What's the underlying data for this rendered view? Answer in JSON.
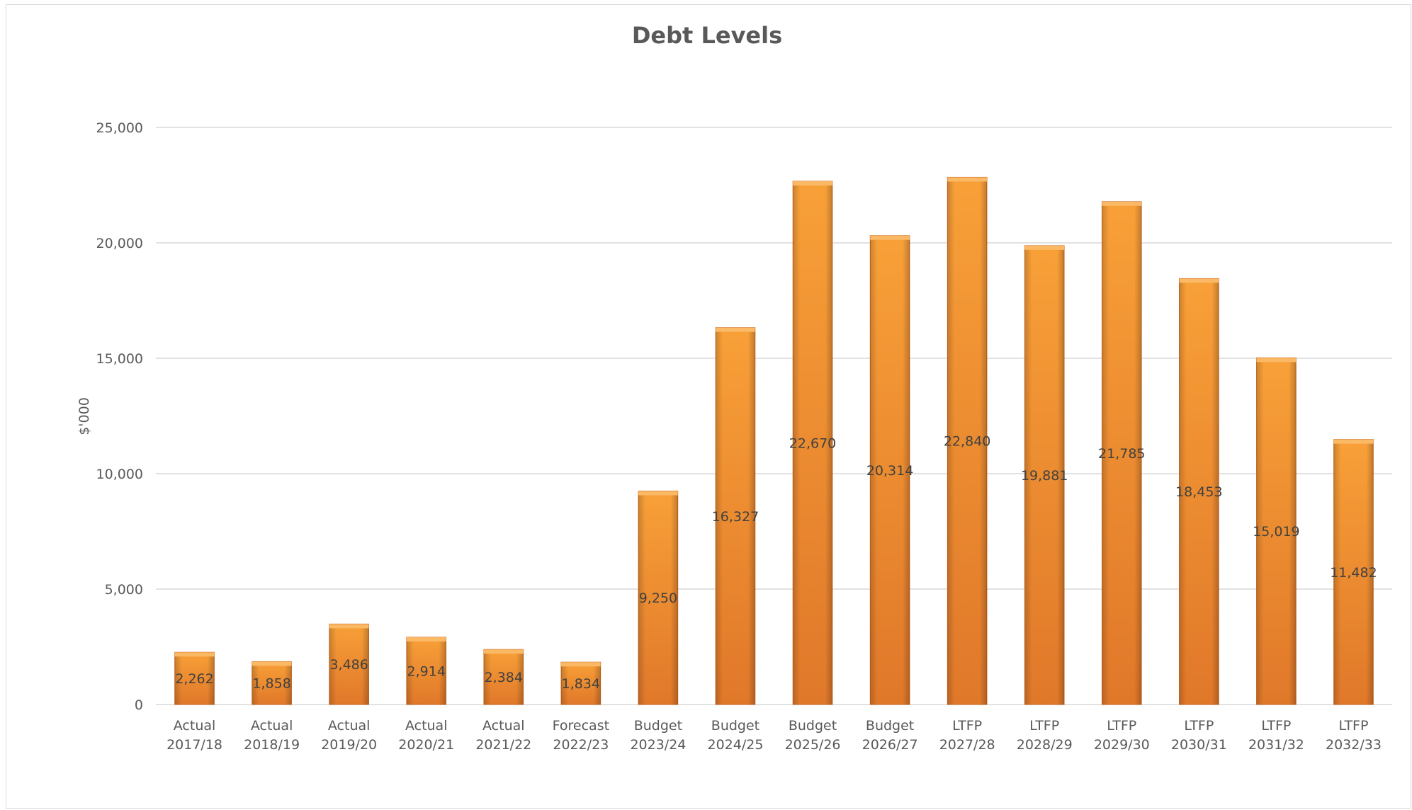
{
  "chart_data": {
    "type": "bar",
    "title": "Debt Levels",
    "xlabel": "",
    "ylabel": "$'000",
    "ylim": [
      0,
      25000
    ],
    "yticks": [
      "0",
      "5,000",
      "10,000",
      "15,000",
      "20,000",
      "25,000"
    ],
    "categories": [
      [
        "Actual",
        "2017/18"
      ],
      [
        "Actual",
        "2018/19"
      ],
      [
        "Actual",
        "2019/20"
      ],
      [
        "Actual",
        "2020/21"
      ],
      [
        "Actual",
        "2021/22"
      ],
      [
        "Forecast",
        "2022/23"
      ],
      [
        "Budget",
        "2023/24"
      ],
      [
        "Budget",
        "2024/25"
      ],
      [
        "Budget",
        "2025/26"
      ],
      [
        "Budget",
        "2026/27"
      ],
      [
        "LTFP",
        "2027/28"
      ],
      [
        "LTFP",
        "2028/29"
      ],
      [
        "LTFP",
        "2029/30"
      ],
      [
        "LTFP",
        "2030/31"
      ],
      [
        "LTFP",
        "2031/32"
      ],
      [
        "LTFP",
        "2032/33"
      ]
    ],
    "values": [
      2262,
      1858,
      3486,
      2914,
      2384,
      1834,
      9250,
      16327,
      22670,
      20314,
      22840,
      19881,
      21785,
      18453,
      15019,
      11482
    ],
    "data_labels": [
      "2,262",
      "1,858",
      "3,486",
      "2,914",
      "2,384",
      "1,834",
      "9,250",
      "16,327",
      "22,670",
      "20,314",
      "22,840",
      "19,881",
      "21,785",
      "18,453",
      "15,019",
      "11,482"
    ],
    "grid": true,
    "legend": "none",
    "bar_color": "#f39a32"
  }
}
